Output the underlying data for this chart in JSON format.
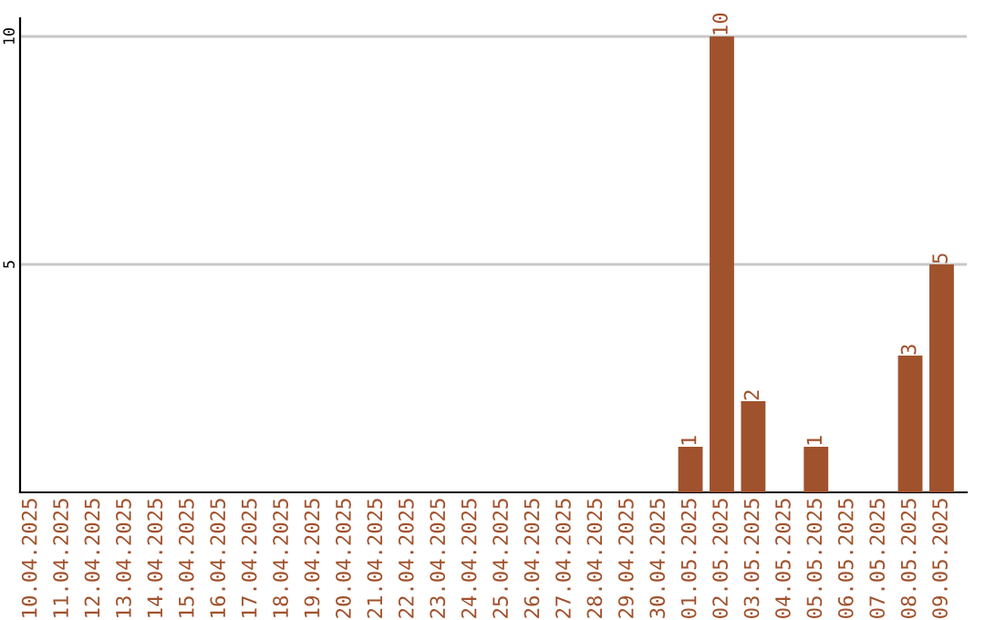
{
  "chart_data": {
    "type": "bar",
    "categories": [
      "10.04.2025",
      "11.04.2025",
      "12.04.2025",
      "13.04.2025",
      "14.04.2025",
      "15.04.2025",
      "16.04.2025",
      "17.04.2025",
      "18.04.2025",
      "19.04.2025",
      "20.04.2025",
      "21.04.2025",
      "22.04.2025",
      "23.04.2025",
      "24.04.2025",
      "25.04.2025",
      "26.04.2025",
      "27.04.2025",
      "28.04.2025",
      "29.04.2025",
      "30.04.2025",
      "01.05.2025",
      "02.05.2025",
      "03.05.2025",
      "04.05.2025",
      "05.05.2025",
      "06.05.2025",
      "07.05.2025",
      "08.05.2025",
      "09.05.2025"
    ],
    "values": [
      0,
      0,
      0,
      0,
      0,
      0,
      0,
      0,
      0,
      0,
      0,
      0,
      0,
      0,
      0,
      0,
      0,
      0,
      0,
      0,
      0,
      1,
      10,
      2,
      0,
      1,
      0,
      0,
      3,
      5
    ],
    "value_labels": [
      null,
      null,
      null,
      null,
      null,
      null,
      null,
      null,
      null,
      null,
      null,
      null,
      null,
      null,
      null,
      null,
      null,
      null,
      null,
      null,
      null,
      "1",
      "10",
      "2",
      null,
      "1",
      null,
      null,
      "3",
      "5"
    ],
    "color": "#a0522d",
    "ylim": [
      0,
      10.4
    ],
    "yticks": [
      5,
      10
    ],
    "grid": "y"
  }
}
